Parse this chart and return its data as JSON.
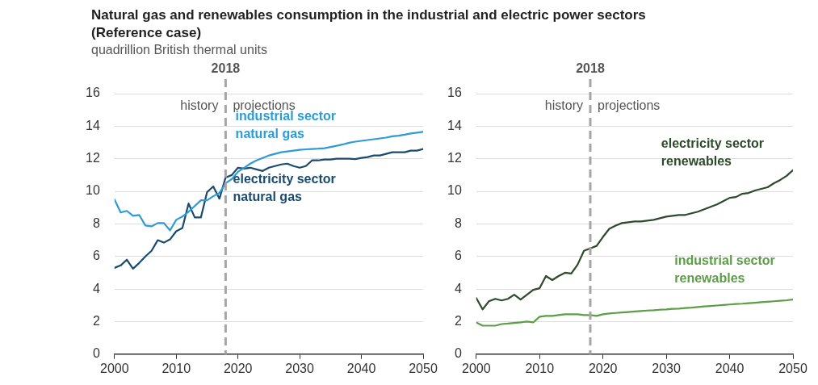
{
  "chart_data": [
    {
      "type": "line",
      "title": "Natural gas and renewables consumption in the industrial and electric power sectors (Reference case)",
      "ylabel": "quadrillion British thermal units",
      "xlim": [
        2000,
        2050
      ],
      "xticks": [
        2000,
        2010,
        2020,
        2030,
        2040,
        2050
      ],
      "ylim": [
        0,
        16
      ],
      "yticks": [
        0,
        2,
        4,
        6,
        8,
        10,
        12,
        14,
        16
      ],
      "grid": "y",
      "legend": false,
      "line_style": "solid",
      "marker": "none",
      "x": [
        2000,
        2001,
        2002,
        2003,
        2004,
        2005,
        2006,
        2007,
        2008,
        2009,
        2010,
        2011,
        2012,
        2013,
        2014,
        2015,
        2016,
        2017,
        2018,
        2019,
        2020,
        2021,
        2022,
        2023,
        2024,
        2025,
        2026,
        2027,
        2028,
        2029,
        2030,
        2031,
        2032,
        2033,
        2034,
        2035,
        2036,
        2037,
        2038,
        2039,
        2040,
        2041,
        2042,
        2043,
        2044,
        2045,
        2046,
        2047,
        2048,
        2049,
        2050
      ],
      "ref_lines": [
        {
          "axis": "x",
          "value": 2018,
          "label": "2018",
          "color": "#a6a6a6",
          "line_style": "dashed"
        }
      ],
      "annotations": [
        "history",
        "projections"
      ],
      "series": [
        {
          "name": "industrial sector natural gas",
          "color": "#2e9bd6",
          "values": [
            9.5,
            8.7,
            8.8,
            8.5,
            8.55,
            7.9,
            7.85,
            8.05,
            8.05,
            7.6,
            8.25,
            8.45,
            8.75,
            9.1,
            9.45,
            9.45,
            9.7,
            9.9,
            10.5,
            10.75,
            11.2,
            11.45,
            11.7,
            11.9,
            12.05,
            12.2,
            12.3,
            12.4,
            12.45,
            12.5,
            12.55,
            12.58,
            12.6,
            12.62,
            12.65,
            12.72,
            12.8,
            12.88,
            12.98,
            13.05,
            13.1,
            13.15,
            13.2,
            13.25,
            13.3,
            13.38,
            13.42,
            13.48,
            13.55,
            13.6,
            13.65
          ]
        },
        {
          "name": "electricity sector natural gas",
          "color": "#1a4a6e",
          "values": [
            5.3,
            5.45,
            5.8,
            5.25,
            5.6,
            6.0,
            6.35,
            7.0,
            6.85,
            7.05,
            7.55,
            7.75,
            9.25,
            8.4,
            8.4,
            9.95,
            10.3,
            9.55,
            10.85,
            11.0,
            11.45,
            11.4,
            11.45,
            11.35,
            11.25,
            11.45,
            11.55,
            11.65,
            11.7,
            11.55,
            11.45,
            11.55,
            11.9,
            11.9,
            11.95,
            11.95,
            12.0,
            12.0,
            12.0,
            11.98,
            12.05,
            12.1,
            12.2,
            12.2,
            12.3,
            12.4,
            12.4,
            12.4,
            12.5,
            12.5,
            12.6
          ]
        }
      ]
    },
    {
      "type": "line",
      "xlim": [
        2000,
        2050
      ],
      "xticks": [
        2000,
        2010,
        2020,
        2030,
        2040,
        2050
      ],
      "ylim": [
        0,
        16
      ],
      "yticks": [
        0,
        2,
        4,
        6,
        8,
        10,
        12,
        14,
        16
      ],
      "grid": "y",
      "legend": false,
      "line_style": "solid",
      "marker": "none",
      "x": [
        2000,
        2001,
        2002,
        2003,
        2004,
        2005,
        2006,
        2007,
        2008,
        2009,
        2010,
        2011,
        2012,
        2013,
        2014,
        2015,
        2016,
        2017,
        2018,
        2019,
        2020,
        2021,
        2022,
        2023,
        2024,
        2025,
        2026,
        2027,
        2028,
        2029,
        2030,
        2031,
        2032,
        2033,
        2034,
        2035,
        2036,
        2037,
        2038,
        2039,
        2040,
        2041,
        2042,
        2043,
        2044,
        2045,
        2046,
        2047,
        2048,
        2049,
        2050
      ],
      "ref_lines": [
        {
          "axis": "x",
          "value": 2018,
          "label": "2018",
          "color": "#a6a6a6",
          "line_style": "dashed"
        }
      ],
      "annotations": [
        "history",
        "projections"
      ],
      "series": [
        {
          "name": "electricity sector renewables",
          "color": "#2d4a2a",
          "values": [
            3.45,
            2.75,
            3.25,
            3.4,
            3.3,
            3.4,
            3.65,
            3.35,
            3.65,
            3.95,
            4.05,
            4.8,
            4.55,
            4.8,
            5.0,
            4.95,
            5.5,
            6.35,
            6.5,
            6.65,
            7.2,
            7.7,
            7.9,
            8.05,
            8.1,
            8.15,
            8.15,
            8.2,
            8.25,
            8.35,
            8.45,
            8.5,
            8.55,
            8.55,
            8.65,
            8.75,
            8.9,
            9.05,
            9.2,
            9.4,
            9.6,
            9.65,
            9.85,
            9.9,
            10.05,
            10.15,
            10.25,
            10.5,
            10.7,
            10.95,
            11.3
          ]
        },
        {
          "name": "industrial sector renewables",
          "color": "#5a9e45",
          "values": [
            1.95,
            1.75,
            1.75,
            1.75,
            1.85,
            1.88,
            1.92,
            1.95,
            2.0,
            1.95,
            2.3,
            2.35,
            2.35,
            2.4,
            2.45,
            2.45,
            2.45,
            2.4,
            2.4,
            2.35,
            2.45,
            2.5,
            2.53,
            2.56,
            2.59,
            2.62,
            2.65,
            2.68,
            2.7,
            2.73,
            2.75,
            2.78,
            2.8,
            2.83,
            2.86,
            2.9,
            2.93,
            2.96,
            2.99,
            3.02,
            3.05,
            3.08,
            3.1,
            3.13,
            3.16,
            3.19,
            3.22,
            3.25,
            3.28,
            3.31,
            3.35
          ]
        }
      ]
    }
  ]
}
